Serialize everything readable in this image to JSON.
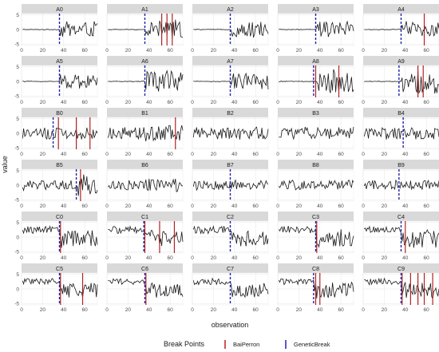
{
  "chart_data": {
    "type": "line",
    "layout": "facet-grid",
    "xlabel": "observation",
    "ylabel": "value",
    "xlim": [
      0,
      72
    ],
    "ylim": [
      -5.5,
      5.5
    ],
    "x_ticks": [
      "0",
      "20",
      "40",
      "60"
    ],
    "y_ticks": [
      "5",
      "0",
      "-5"
    ],
    "n_obs": 72,
    "grid": true,
    "legend_position": "bottom",
    "legend": {
      "title": "Break Points",
      "entries": [
        {
          "name": "BaiPerron",
          "color": "#b22222"
        },
        {
          "name": "GeneticBreak",
          "color": "#2222aa"
        }
      ]
    },
    "panels": [
      {
        "name": "A0",
        "quiet_until": 36,
        "pre_amp": 0.05,
        "post_amp": 1.3,
        "genetic": [
          36
        ],
        "baiperron": []
      },
      {
        "name": "A1",
        "quiet_until": 36,
        "pre_amp": 0.05,
        "post_amp": 1.5,
        "genetic": [
          36
        ],
        "baiperron": [
          52,
          57,
          62
        ]
      },
      {
        "name": "A2",
        "quiet_until": 36,
        "pre_amp": 0.05,
        "post_amp": 1.3,
        "genetic": [
          36
        ],
        "baiperron": []
      },
      {
        "name": "A3",
        "quiet_until": 36,
        "pre_amp": 0.05,
        "post_amp": 1.3,
        "genetic": [
          36
        ],
        "baiperron": []
      },
      {
        "name": "A4",
        "quiet_until": 36,
        "pre_amp": 0.05,
        "post_amp": 1.3,
        "genetic": [
          36
        ],
        "baiperron": [
          58
        ]
      },
      {
        "name": "A5",
        "quiet_until": 36,
        "pre_amp": 0.05,
        "post_amp": 1.2,
        "genetic": [
          36
        ],
        "baiperron": []
      },
      {
        "name": "A6",
        "quiet_until": 36,
        "pre_amp": 0.05,
        "post_amp": 1.8,
        "genetic": [
          36
        ],
        "baiperron": []
      },
      {
        "name": "A7",
        "quiet_until": 36,
        "pre_amp": 0.05,
        "post_amp": 1.3,
        "genetic": [
          36
        ],
        "baiperron": []
      },
      {
        "name": "A8",
        "quiet_until": 36,
        "pre_amp": 0.05,
        "post_amp": 2.0,
        "genetic": [
          34
        ],
        "baiperron": [
          36,
          58
        ]
      },
      {
        "name": "A9",
        "quiet_until": 36,
        "pre_amp": 0.05,
        "post_amp": 2.0,
        "genetic": [
          34
        ],
        "baiperron": [
          52,
          57
        ]
      },
      {
        "name": "B0",
        "quiet_until": 0,
        "pre_amp": 1.0,
        "post_amp": 1.0,
        "genetic": [
          30
        ],
        "baiperron": [
          35,
          52,
          65
        ]
      },
      {
        "name": "B1",
        "quiet_until": 0,
        "pre_amp": 1.0,
        "post_amp": 1.3,
        "genetic": [],
        "baiperron": [
          65
        ]
      },
      {
        "name": "B2",
        "quiet_until": 0,
        "pre_amp": 1.0,
        "post_amp": 1.0,
        "genetic": [],
        "baiperron": []
      },
      {
        "name": "B3",
        "quiet_until": 0,
        "pre_amp": 1.0,
        "post_amp": 1.0,
        "genetic": [],
        "baiperron": []
      },
      {
        "name": "B4",
        "quiet_until": 0,
        "pre_amp": 1.0,
        "post_amp": 1.0,
        "genetic": [
          38
        ],
        "baiperron": []
      },
      {
        "name": "B5",
        "quiet_until": 0,
        "pre_amp": 0.8,
        "post_amp": 1.8,
        "genetic": [
          52
        ],
        "baiperron": [
          56
        ]
      },
      {
        "name": "B6",
        "quiet_until": 0,
        "pre_amp": 0.8,
        "post_amp": 1.0,
        "genetic": [],
        "baiperron": []
      },
      {
        "name": "B7",
        "quiet_until": 0,
        "pre_amp": 0.8,
        "post_amp": 0.8,
        "genetic": [
          36
        ],
        "baiperron": []
      },
      {
        "name": "B8",
        "quiet_until": 0,
        "pre_amp": 0.8,
        "post_amp": 0.8,
        "genetic": [],
        "baiperron": []
      },
      {
        "name": "B9",
        "quiet_until": 0,
        "pre_amp": 0.8,
        "post_amp": 0.8,
        "genetic": [
          34
        ],
        "baiperron": []
      },
      {
        "name": "C0",
        "quiet_until": 0,
        "pre_amp": 0.6,
        "post_amp": 1.4,
        "level_pre": 2.5,
        "level_post": -0.5,
        "genetic": [
          36
        ],
        "baiperron": [
          37
        ]
      },
      {
        "name": "C1",
        "quiet_until": 0,
        "pre_amp": 0.6,
        "post_amp": 1.4,
        "level_pre": 2.5,
        "level_post": -0.5,
        "genetic": [
          35
        ],
        "baiperron": [
          36,
          50,
          64
        ]
      },
      {
        "name": "C2",
        "quiet_until": 0,
        "pre_amp": 0.6,
        "post_amp": 1.2,
        "level_pre": 2.5,
        "level_post": -0.5,
        "genetic": [
          36
        ],
        "baiperron": []
      },
      {
        "name": "C3",
        "quiet_until": 0,
        "pre_amp": 0.6,
        "post_amp": 1.4,
        "level_pre": 2.5,
        "level_post": -0.5,
        "genetic": [
          36
        ],
        "baiperron": [
          37
        ]
      },
      {
        "name": "C4",
        "quiet_until": 0,
        "pre_amp": 0.6,
        "post_amp": 1.4,
        "level_pre": 2.5,
        "level_post": -0.5,
        "genetic": [
          36
        ],
        "baiperron": [
          40
        ]
      },
      {
        "name": "C5",
        "quiet_until": 0,
        "pre_amp": 0.5,
        "post_amp": 1.2,
        "level_pre": 2.5,
        "level_post": -0.5,
        "genetic": [
          36
        ],
        "baiperron": [
          37,
          58
        ]
      },
      {
        "name": "C6",
        "quiet_until": 0,
        "pre_amp": 0.5,
        "post_amp": 1.2,
        "level_pre": 2.5,
        "level_post": -0.5,
        "genetic": [
          36
        ],
        "baiperron": [
          37
        ]
      },
      {
        "name": "C7",
        "quiet_until": 0,
        "pre_amp": 0.5,
        "post_amp": 1.2,
        "level_pre": 2.5,
        "level_post": -0.5,
        "genetic": [
          36
        ],
        "baiperron": []
      },
      {
        "name": "C8",
        "quiet_until": 0,
        "pre_amp": 0.5,
        "post_amp": 1.4,
        "level_pre": 2.5,
        "level_post": -0.5,
        "genetic": [
          34
        ],
        "baiperron": [
          36,
          40
        ]
      },
      {
        "name": "C9",
        "quiet_until": 0,
        "pre_amp": 0.5,
        "post_amp": 1.4,
        "level_pre": 2.5,
        "level_post": -0.5,
        "genetic": [
          36
        ],
        "baiperron": [
          37,
          45,
          52,
          58,
          66
        ]
      }
    ]
  }
}
